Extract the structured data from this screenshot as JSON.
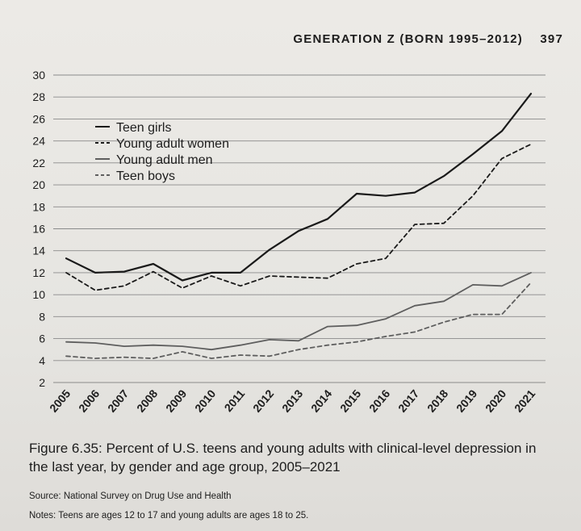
{
  "header": {
    "running_title": "GENERATION Z (BORN 1995–2012)",
    "page_number": "397"
  },
  "caption": "Figure 6.35: Percent of U.S. teens and young adults with clinical-level depression in the last year, by gender and age group, 2005–2021",
  "source": "Source: National Survey on Drug Use and Health",
  "notes": "Notes: Teens are ages 12 to 17 and young adults are ages 18 to 25.",
  "colors": {
    "ink_dark": "#1a1a1a",
    "ink_gray": "#5e5e5e",
    "grid": "#8a8a8a"
  },
  "chart_data": {
    "type": "line",
    "title": "",
    "xlabel": "",
    "ylabel": "",
    "x": [
      "2005",
      "2006",
      "2007",
      "2008",
      "2009",
      "2010",
      "2011",
      "2012",
      "2013",
      "2014",
      "2015",
      "2016",
      "2017",
      "2018",
      "2019",
      "2020",
      "2021"
    ],
    "ylim": [
      2,
      30
    ],
    "yticks": [
      2,
      4,
      6,
      8,
      10,
      12,
      14,
      16,
      18,
      20,
      22,
      24,
      26,
      28,
      30
    ],
    "grid": true,
    "legend_position": "top-left",
    "series": [
      {
        "name": "Teen girls",
        "style": "solid",
        "color": "#1a1a1a",
        "values": [
          13.3,
          12.0,
          12.1,
          12.8,
          11.3,
          12.0,
          12.0,
          14.1,
          15.8,
          16.9,
          19.2,
          19.0,
          19.3,
          20.8,
          22.8,
          24.9,
          28.3
        ]
      },
      {
        "name": "Young adult women",
        "style": "dashed",
        "color": "#1a1a1a",
        "values": [
          12.0,
          10.4,
          10.8,
          12.1,
          10.6,
          11.7,
          10.8,
          11.7,
          11.6,
          11.5,
          12.8,
          13.3,
          16.4,
          16.5,
          19.0,
          22.4,
          23.7
        ]
      },
      {
        "name": "Young adult men",
        "style": "solid",
        "color": "#5e5e5e",
        "values": [
          5.7,
          5.6,
          5.3,
          5.4,
          5.3,
          5.0,
          5.4,
          5.9,
          5.8,
          7.1,
          7.2,
          7.8,
          9.0,
          9.4,
          10.9,
          10.8,
          12.0
        ]
      },
      {
        "name": "Teen boys",
        "style": "dashed",
        "color": "#5e5e5e",
        "values": [
          4.4,
          4.2,
          4.3,
          4.2,
          4.8,
          4.2,
          4.5,
          4.4,
          5.0,
          5.4,
          5.7,
          6.2,
          6.6,
          7.5,
          8.2,
          8.2,
          11.1
        ]
      }
    ]
  }
}
